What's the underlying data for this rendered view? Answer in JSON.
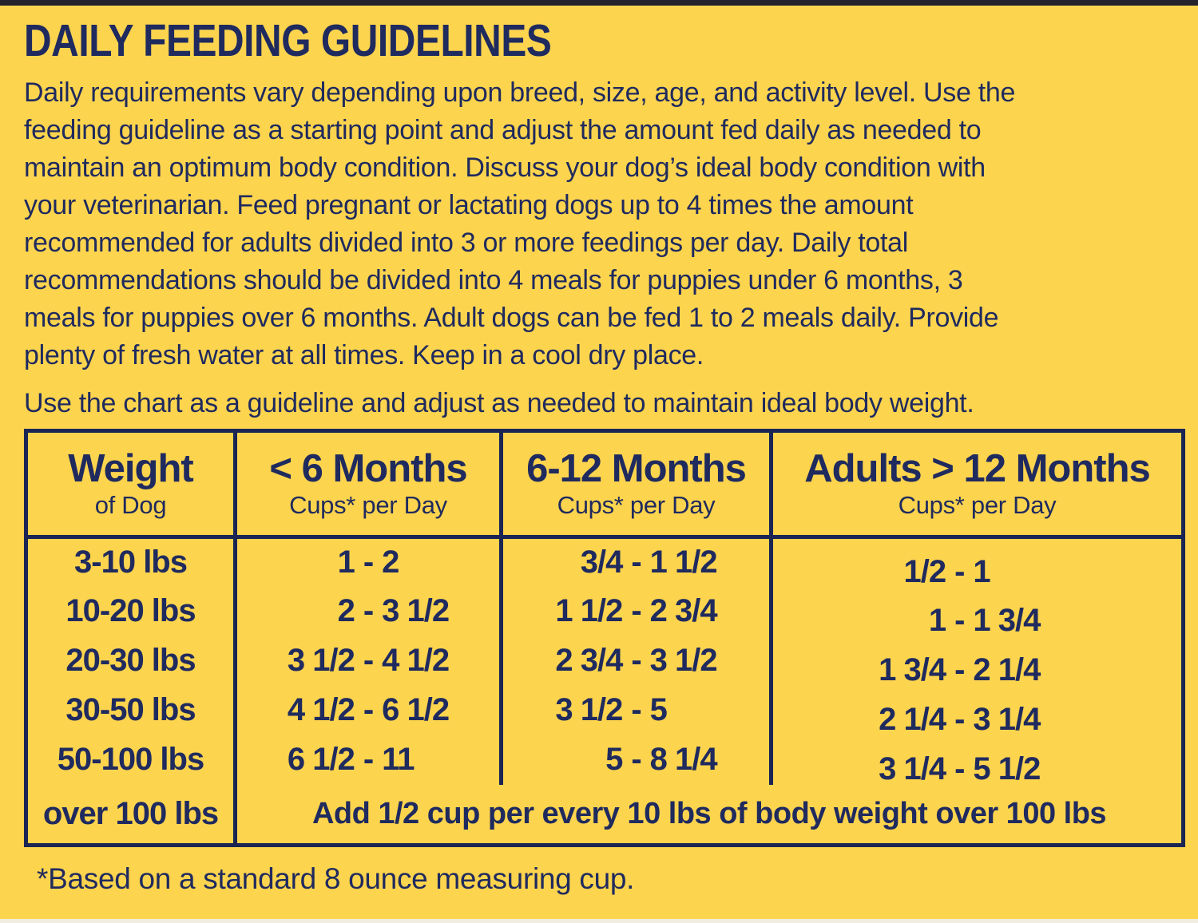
{
  "page": {
    "title": "DAILY FEEDING GUIDELINES",
    "intro": "Daily requirements vary depending upon breed, size, age, and activity level. Use the\nfeeding guideline as a starting point and adjust the amount fed daily as needed to\nmaintain an optimum body condition. Discuss your dog’s ideal body condition with\nyour veterinarian. Feed pregnant or lactating dogs up to 4 times the amount\nrecommended for adults divided into 3 or more feedings per day. Daily total\nrecommendations should be divided into 4 meals for puppies under 6 months, 3\nmeals for puppies over 6 months. Adult dogs can be fed 1 to 2 meals daily. Provide\nplenty of fresh water at all times. Keep in a cool dry place.",
    "chart_note": "Use the chart as a guideline and adjust as needed to maintain ideal body weight.",
    "footnote": "*Based on a standard 8 ounce measuring cup."
  },
  "colors": {
    "background": "#fcd44e",
    "text_navy": "#1f2a5e",
    "table_border_navy": "#1b2554"
  },
  "table": {
    "range_separator": "-",
    "headers": [
      {
        "title": "Weight",
        "subtitle": "of Dog"
      },
      {
        "title": "< 6 Months",
        "subtitle": "Cups* per Day"
      },
      {
        "title": "6-12 Months",
        "subtitle": "Cups* per Day"
      },
      {
        "title": "Adults > 12 Months",
        "subtitle": "Cups* per Day"
      }
    ],
    "rows": [
      {
        "weight": "3-10 lbs",
        "under6": {
          "lo": "1",
          "hi": "2"
        },
        "m6to12": {
          "lo": "3/4",
          "hi": "1 1/2"
        },
        "adult": {
          "lo": "1/2",
          "hi": "1"
        }
      },
      {
        "weight": "10-20 lbs",
        "under6": {
          "lo": "2",
          "hi": "3 1/2"
        },
        "m6to12": {
          "lo": "1 1/2",
          "hi": "2 3/4"
        },
        "adult": {
          "lo": "1",
          "hi": "1 3/4"
        }
      },
      {
        "weight": "20-30 lbs",
        "under6": {
          "lo": "3 1/2",
          "hi": "4 1/2"
        },
        "m6to12": {
          "lo": "2 3/4",
          "hi": "3 1/2"
        },
        "adult": {
          "lo": "1 3/4",
          "hi": "2 1/4"
        }
      },
      {
        "weight": "30-50 lbs",
        "under6": {
          "lo": "4 1/2",
          "hi": "6 1/2"
        },
        "m6to12": {
          "lo": "3 1/2",
          "hi": "5"
        },
        "adult": {
          "lo": "2 1/4",
          "hi": "3 1/4"
        }
      },
      {
        "weight": "50-100 lbs",
        "under6": {
          "lo": "6 1/2",
          "hi": "11"
        },
        "m6to12": {
          "lo": "5",
          "hi": "8 1/4"
        },
        "adult": {
          "lo": "3 1/4",
          "hi": "5 1/2"
        }
      }
    ],
    "over100": {
      "weight": "over 100 lbs",
      "note": "Add 1/2 cup per every 10 lbs of body weight over 100 lbs"
    }
  }
}
